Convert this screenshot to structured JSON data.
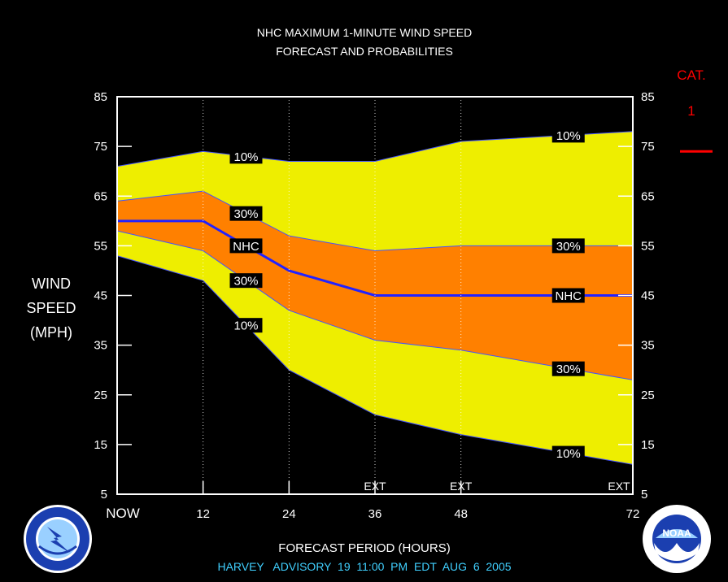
{
  "title_line1": "NHC MAXIMUM 1-MINUTE WIND SPEED",
  "title_line2": "FORECAST AND PROBABILITIES",
  "ylabel_lines": [
    "WIND",
    "SPEED",
    "(MPH)"
  ],
  "xlabel": "FORECAST PERIOD (HOURS)",
  "advisory": "HARVEY   ADVISORY  19  11:00  PM  EDT  AUG  6  2005",
  "category": {
    "label": "CAT.",
    "value": "1",
    "threshold_mph": 74,
    "color": "#ff0000"
  },
  "colors": {
    "yellow": "#eeee00",
    "orange": "#ff8000",
    "nhc_line": "#2222ff",
    "advisory_text": "#40d0ff"
  },
  "logos": {
    "left": {
      "name": "NATIONAL WEATHER SERVICE"
    },
    "right": {
      "name": "NOAA"
    }
  },
  "chart_data": {
    "type": "area",
    "xlim": [
      0,
      72
    ],
    "ylim": [
      5,
      85
    ],
    "yticks": [
      5,
      15,
      25,
      35,
      45,
      55,
      65,
      75,
      85
    ],
    "xticks": [
      {
        "x": 0,
        "label": "NOW"
      },
      {
        "x": 12,
        "label": "12"
      },
      {
        "x": 24,
        "label": "24"
      },
      {
        "x": 36,
        "label": "36"
      },
      {
        "x": 48,
        "label": "48"
      },
      {
        "x": 72,
        "label": "72"
      }
    ],
    "dotted_lines_x": [
      12,
      24,
      36,
      48
    ],
    "ext_labels": [
      {
        "x": 36,
        "label": "EXT"
      },
      {
        "x": 48,
        "label": "EXT"
      },
      {
        "x": 72,
        "label": "EXT"
      }
    ],
    "x": [
      0,
      12,
      24,
      36,
      48,
      72
    ],
    "series": [
      {
        "name": "10%",
        "values": [
          71,
          74,
          72,
          72,
          76,
          78
        ],
        "label_at": [
          18,
          63
        ]
      },
      {
        "name": "30%",
        "values": [
          64,
          66,
          57,
          54,
          55,
          55
        ],
        "label_at": [
          18,
          63
        ]
      },
      {
        "name": "NHC",
        "values": [
          60,
          60,
          50,
          45,
          45,
          45
        ],
        "label_at": [
          18,
          63
        ]
      },
      {
        "name": "30%",
        "values": [
          58,
          54,
          42,
          36,
          34,
          28
        ],
        "label_at": [
          18,
          63
        ]
      },
      {
        "name": "10%",
        "values": [
          53,
          48,
          30,
          21,
          17,
          11
        ],
        "label_at": [
          18,
          63
        ]
      }
    ]
  }
}
